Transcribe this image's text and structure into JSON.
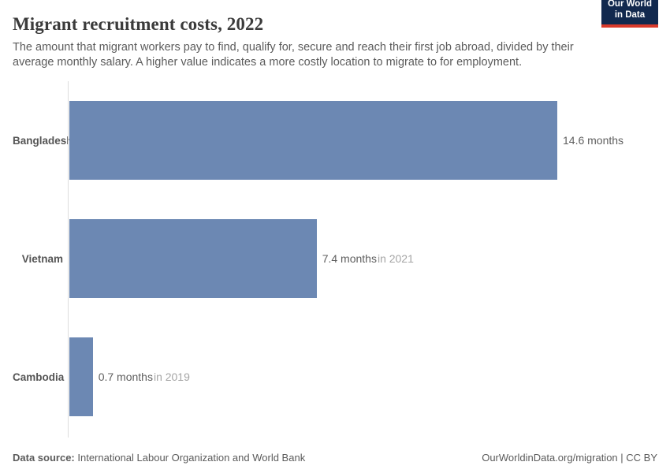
{
  "header": {
    "title": "Migrant recruitment costs, 2022",
    "subtitle": "The amount that migrant workers pay to find, qualify for, secure and reach their first job abroad, divided by their average monthly salary. A higher value indicates a more costly location to migrate to for employment.",
    "logo": {
      "line1": "Our World",
      "line2": "in Data"
    }
  },
  "chart_data": {
    "type": "bar",
    "orientation": "horizontal",
    "title": "Migrant recruitment costs, 2022",
    "unit": "months",
    "xlabel": "",
    "ylabel": "",
    "xlim": [
      0,
      14.6
    ],
    "grid": false,
    "legend": false,
    "bar_color": "#6c88b3",
    "categories": [
      "Bangladesh",
      "Vietnam",
      "Cambodia"
    ],
    "values": [
      14.6,
      7.4,
      0.7
    ],
    "bars": [
      {
        "entity": "Bangladesh",
        "value": 14.6,
        "value_label": "14.6 months",
        "time_label": ""
      },
      {
        "entity": "Vietnam",
        "value": 7.4,
        "value_label": "7.4 months",
        "time_label": "in 2021"
      },
      {
        "entity": "Cambodia",
        "value": 0.7,
        "value_label": "0.7 months",
        "time_label": "in 2019"
      }
    ]
  },
  "footer": {
    "source_label": "Data source:",
    "source_text": " International Labour Organization and World Bank",
    "right_text": "OurWorldinData.org/migration | CC BY"
  },
  "colors": {
    "bar": "#6c88b3",
    "axis_line": "#dddddd",
    "title_text": "#3b3b3b",
    "body_text": "#5b5b5b",
    "time_label_text": "#a5a5a5",
    "logo_background": "#12294e",
    "logo_accent": "#d93a2b",
    "logo_text": "#ffffff"
  }
}
